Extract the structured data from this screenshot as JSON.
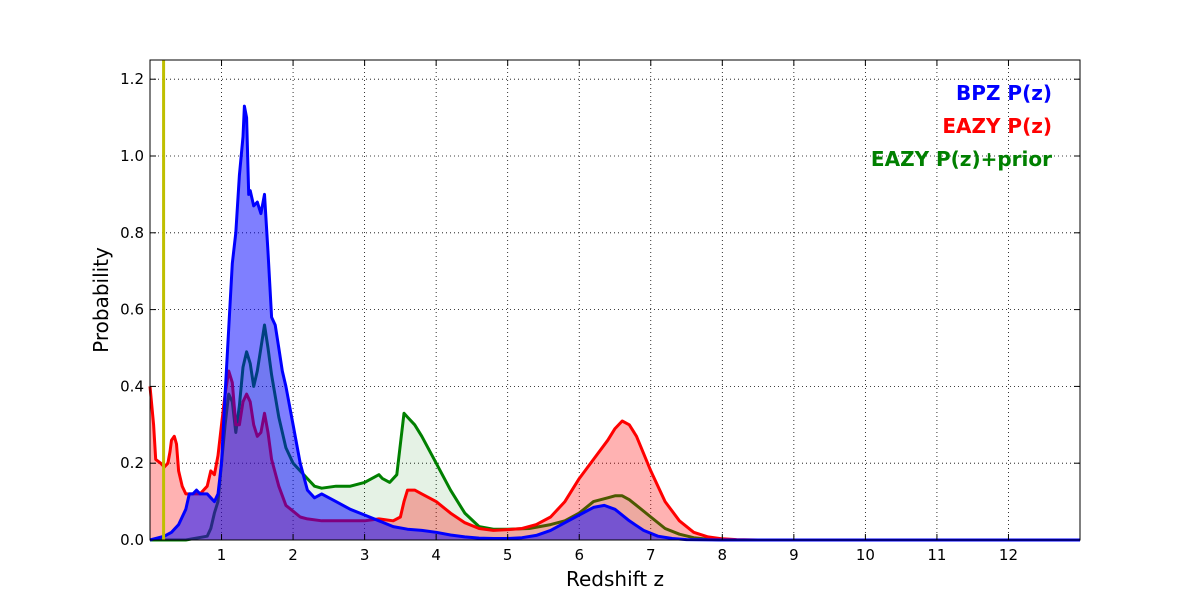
{
  "chart_data": {
    "type": "area",
    "xlabel": "Redshift z",
    "ylabel": "Probability",
    "xlim": [
      0,
      13
    ],
    "ylim": [
      0,
      1.25
    ],
    "xticks": [
      1,
      2,
      3,
      4,
      5,
      6,
      7,
      8,
      9,
      10,
      11,
      12
    ],
    "yticks": [
      0.0,
      0.2,
      0.4,
      0.6,
      0.8,
      1.0,
      1.2
    ],
    "ytick_labels": [
      "0.0",
      "0.2",
      "0.4",
      "0.6",
      "0.8",
      "1.0",
      "1.2"
    ],
    "grid": true,
    "legend_position": "top-right",
    "vertical_line": {
      "x": 0.19,
      "color": "#bfbf00"
    },
    "series": [
      {
        "name": "EAZY P(z)+prior",
        "color": "#008000",
        "fill_opacity": 0.1,
        "x": [
          0,
          0.5,
          0.8,
          0.85,
          0.9,
          0.95,
          1.0,
          1.05,
          1.1,
          1.15,
          1.2,
          1.25,
          1.3,
          1.35,
          1.4,
          1.45,
          1.5,
          1.55,
          1.6,
          1.65,
          1.7,
          1.8,
          1.9,
          2.0,
          2.1,
          2.2,
          2.3,
          2.4,
          2.6,
          2.8,
          3.0,
          3.2,
          3.25,
          3.35,
          3.45,
          3.5,
          3.55,
          3.6,
          3.7,
          3.8,
          4.0,
          4.2,
          4.4,
          4.6,
          4.8,
          5.0,
          5.3,
          5.6,
          5.8,
          6.0,
          6.2,
          6.4,
          6.5,
          6.6,
          6.7,
          6.8,
          7.0,
          7.2,
          7.4,
          7.6,
          7.8,
          8.0,
          9.0,
          13
        ],
        "y": [
          0.0,
          0.0,
          0.01,
          0.03,
          0.07,
          0.1,
          0.2,
          0.3,
          0.38,
          0.36,
          0.28,
          0.35,
          0.45,
          0.49,
          0.46,
          0.4,
          0.44,
          0.5,
          0.56,
          0.5,
          0.43,
          0.32,
          0.24,
          0.2,
          0.18,
          0.16,
          0.14,
          0.135,
          0.14,
          0.14,
          0.15,
          0.17,
          0.16,
          0.15,
          0.17,
          0.25,
          0.33,
          0.32,
          0.3,
          0.27,
          0.2,
          0.13,
          0.07,
          0.035,
          0.028,
          0.028,
          0.03,
          0.04,
          0.05,
          0.07,
          0.1,
          0.11,
          0.115,
          0.115,
          0.105,
          0.09,
          0.06,
          0.03,
          0.015,
          0.006,
          0.002,
          0.0,
          0.0,
          0.0
        ]
      },
      {
        "name": "EAZY P(z)",
        "color": "#ff0000",
        "fill_opacity": 0.3,
        "x": [
          0,
          0.05,
          0.08,
          0.15,
          0.2,
          0.25,
          0.28,
          0.3,
          0.34,
          0.37,
          0.4,
          0.45,
          0.5,
          0.6,
          0.7,
          0.8,
          0.85,
          0.9,
          0.95,
          1.0,
          1.05,
          1.1,
          1.15,
          1.2,
          1.25,
          1.3,
          1.35,
          1.4,
          1.45,
          1.5,
          1.55,
          1.6,
          1.65,
          1.7,
          1.8,
          1.9,
          2.0,
          2.1,
          2.2,
          2.4,
          2.6,
          2.8,
          3.0,
          3.2,
          3.4,
          3.5,
          3.55,
          3.6,
          3.7,
          3.8,
          4.0,
          4.2,
          4.4,
          4.6,
          4.8,
          5.0,
          5.2,
          5.4,
          5.6,
          5.8,
          6.0,
          6.2,
          6.4,
          6.5,
          6.6,
          6.7,
          6.8,
          7.0,
          7.2,
          7.4,
          7.6,
          7.8,
          8.0,
          8.2,
          8.5,
          9.0,
          13
        ],
        "y": [
          0.4,
          0.3,
          0.21,
          0.2,
          0.19,
          0.2,
          0.23,
          0.26,
          0.27,
          0.25,
          0.18,
          0.14,
          0.12,
          0.12,
          0.12,
          0.14,
          0.18,
          0.17,
          0.22,
          0.3,
          0.38,
          0.44,
          0.41,
          0.3,
          0.3,
          0.36,
          0.38,
          0.36,
          0.3,
          0.27,
          0.28,
          0.33,
          0.28,
          0.21,
          0.14,
          0.09,
          0.075,
          0.06,
          0.055,
          0.05,
          0.05,
          0.05,
          0.05,
          0.055,
          0.05,
          0.06,
          0.1,
          0.13,
          0.13,
          0.12,
          0.1,
          0.07,
          0.045,
          0.03,
          0.025,
          0.027,
          0.03,
          0.04,
          0.06,
          0.1,
          0.16,
          0.21,
          0.26,
          0.29,
          0.31,
          0.3,
          0.27,
          0.18,
          0.1,
          0.05,
          0.02,
          0.008,
          0.003,
          0.001,
          0.0,
          0.0,
          0.0
        ]
      },
      {
        "name": "BPZ P(z)",
        "color": "#0000ff",
        "fill_opacity": 0.5,
        "x": [
          0,
          0.2,
          0.3,
          0.4,
          0.5,
          0.55,
          0.6,
          0.65,
          0.7,
          0.75,
          0.8,
          0.85,
          0.9,
          0.95,
          1.0,
          1.05,
          1.1,
          1.15,
          1.2,
          1.25,
          1.3,
          1.32,
          1.35,
          1.38,
          1.4,
          1.45,
          1.5,
          1.55,
          1.6,
          1.65,
          1.7,
          1.75,
          1.8,
          1.85,
          1.9,
          2.0,
          2.1,
          2.2,
          2.3,
          2.4,
          2.6,
          2.8,
          3.0,
          3.2,
          3.4,
          3.6,
          3.8,
          4.0,
          4.2,
          4.4,
          4.6,
          4.8,
          5.0,
          5.2,
          5.4,
          5.6,
          5.8,
          6.0,
          6.2,
          6.35,
          6.5,
          6.7,
          6.9,
          7.1,
          7.3,
          7.5,
          8.0,
          13
        ],
        "y": [
          0.0,
          0.01,
          0.02,
          0.04,
          0.08,
          0.12,
          0.12,
          0.13,
          0.12,
          0.12,
          0.12,
          0.11,
          0.1,
          0.12,
          0.2,
          0.38,
          0.55,
          0.72,
          0.8,
          0.95,
          1.05,
          1.13,
          1.1,
          0.9,
          0.91,
          0.87,
          0.88,
          0.85,
          0.9,
          0.75,
          0.58,
          0.56,
          0.5,
          0.44,
          0.4,
          0.3,
          0.2,
          0.13,
          0.11,
          0.12,
          0.1,
          0.08,
          0.065,
          0.05,
          0.035,
          0.028,
          0.025,
          0.02,
          0.013,
          0.008,
          0.005,
          0.004,
          0.004,
          0.006,
          0.012,
          0.025,
          0.045,
          0.065,
          0.085,
          0.09,
          0.08,
          0.05,
          0.025,
          0.01,
          0.004,
          0.001,
          0.0,
          0.0
        ]
      }
    ],
    "legend": [
      {
        "label": "BPZ P(z)",
        "color": "#0000ff"
      },
      {
        "label": "EAZY P(z)",
        "color": "#ff0000"
      },
      {
        "label": "EAZY P(z)+prior",
        "color": "#008000"
      }
    ]
  }
}
